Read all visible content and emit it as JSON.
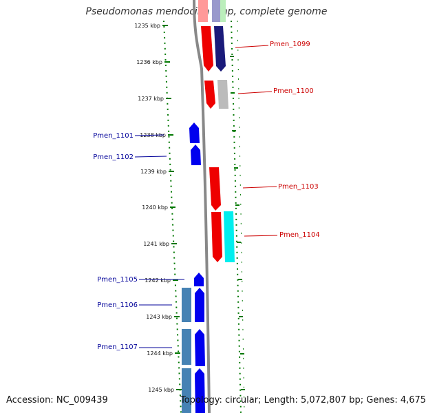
{
  "title": "Pseudomonas mendocina ymp, complete genome",
  "footer": {
    "accession": "Accession: NC_009439",
    "info": "Topology: circular; Length: 5,072,807 bp; Genes: 4,675"
  },
  "colors": {
    "plus_strand_label": "#cc0000",
    "minus_strand_label": "#000099",
    "tick": "#007700",
    "backbone": "#888888"
  },
  "ticks": [
    {
      "label": "1235 kbp"
    },
    {
      "label": "1236 kbp"
    },
    {
      "label": "1237 kbp"
    },
    {
      "label": "1238 kbp"
    },
    {
      "label": "1239 kbp"
    },
    {
      "label": "1240 kbp"
    },
    {
      "label": "1241 kbp"
    },
    {
      "label": "1242 kbp"
    },
    {
      "label": "1243 kbp"
    },
    {
      "label": "1244 kbp"
    },
    {
      "label": "1245 kbp"
    }
  ],
  "gene_labels": [
    {
      "text": "Pmen_1099",
      "strand": "plus"
    },
    {
      "text": "Pmen_1100",
      "strand": "plus"
    },
    {
      "text": "Pmen_1101",
      "strand": "minus"
    },
    {
      "text": "Pmen_1102",
      "strand": "minus"
    },
    {
      "text": "Pmen_1103",
      "strand": "plus"
    },
    {
      "text": "Pmen_1104",
      "strand": "plus"
    },
    {
      "text": "Pmen_1105",
      "strand": "minus"
    },
    {
      "text": "Pmen_1106",
      "strand": "minus"
    },
    {
      "text": "Pmen_1107",
      "strand": "minus"
    }
  ]
}
